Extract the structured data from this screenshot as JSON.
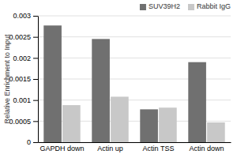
{
  "chart_data": {
    "type": "bar",
    "categories": [
      "GAPDH down",
      "Actin up",
      "Actin TSS",
      "Actin down"
    ],
    "series": [
      {
        "name": "SUV39H2",
        "color": "#707070",
        "values": [
          0.00277,
          0.00245,
          0.00078,
          0.0019
        ]
      },
      {
        "name": "Rabbit IgG",
        "color": "#c8c8c8",
        "values": [
          0.00088,
          0.00108,
          0.00082,
          0.00047
        ]
      }
    ],
    "y_label": "Relative Enrichment to Input",
    "ylim": [
      0,
      0.003
    ],
    "yticks": [
      0,
      0.0005,
      0.001,
      0.0015,
      0.002,
      0.0025,
      0.003
    ],
    "grid": true,
    "legend": "upper right"
  }
}
